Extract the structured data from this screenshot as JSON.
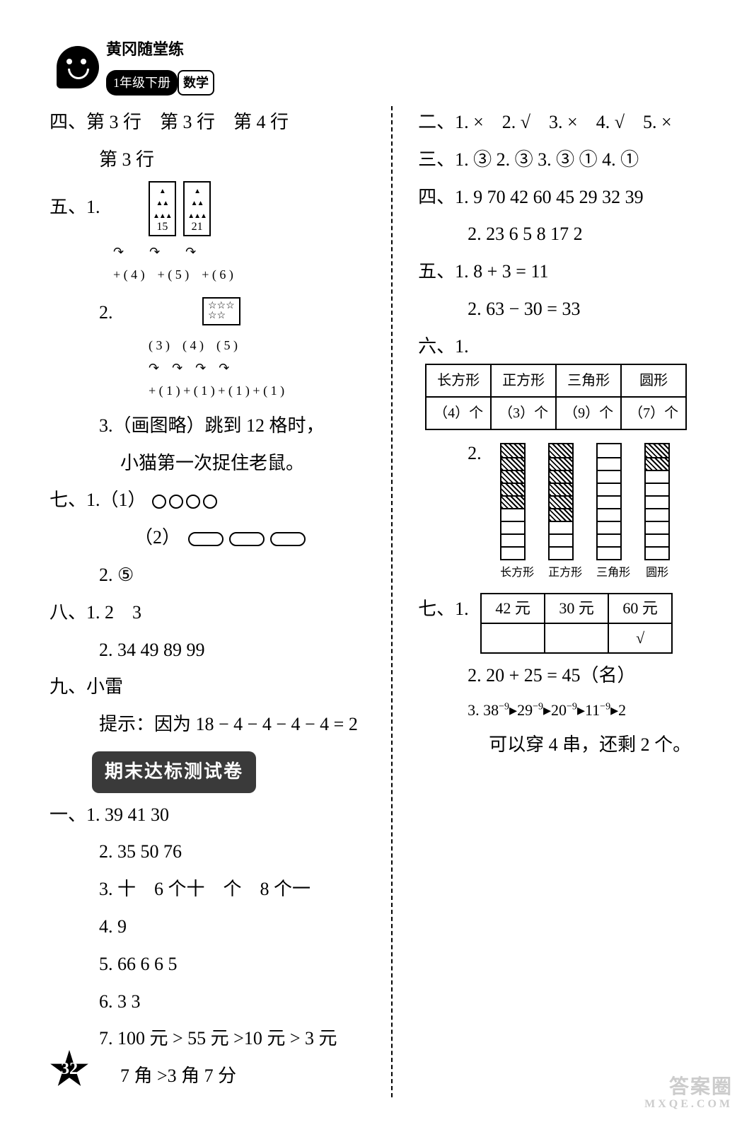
{
  "header": {
    "brand": "黄冈随堂练",
    "grade": "1年级下册",
    "subject": "数学"
  },
  "left": {
    "q4": "四、第 3 行　第 3 行　第 4 行",
    "q4b": "第 3 行",
    "q5": "五、1.",
    "q5_tri1": "15",
    "q5_tri2": "21",
    "q5_arrows1": "+ ( 4 )　+ ( 5 )　+ ( 6 )",
    "q5_2": "2.",
    "q5_2_nums": "( 3 )　( 4 )　( 5 )",
    "q5_arrows2": "+ ( 1 ) + ( 1 ) + ( 1 ) + ( 1 )",
    "q5_3a": "3.（画图略）跳到 12 格时，",
    "q5_3b": "小猫第一次捉住老鼠。",
    "q7_1_1": "七、1.（1）",
    "q7_1_2": "（2）",
    "q7_2": "2. ⑤",
    "q8_1": "八、1. 2　3",
    "q8_2": "2. 34  49  89  99",
    "q9": "九、小雷",
    "q9_hint": "提示：因为 18 − 4 − 4 − 4 − 4 = 2",
    "banner": "期末达标测试卷",
    "a1_1": "一、1. 39  41  30",
    "a1_2": "2. 35  50  76",
    "a1_3": "3. 十　6 个十　个　8 个一",
    "a1_4": "4. 9",
    "a1_5": "5. 66  6  6  5",
    "a1_6": "6. 3  3",
    "a1_7a": "7. 100 元 > 55 元 >10 元 > 3 元",
    "a1_7b": "7 角 >3 角 7 分"
  },
  "right": {
    "q2": "二、1. ×　2. √　3. ×　4. √　5. ×",
    "q3": "三、1. ③ 2. ③ 3. ③ ① 4. ①",
    "q4_1": "四、1. 9  70  42  60  45  29  32  39",
    "q4_2": "2. 23  6  5  8  17  2",
    "q5_1": "五、1. 8 + 3 = 11",
    "q5_2": "2. 63 − 30 = 33",
    "q6": "六、1.",
    "shape_table": {
      "headers": [
        "长方形",
        "正方形",
        "三角形",
        "圆形"
      ],
      "row": [
        "（4）个",
        "（3）个",
        "（9）个",
        "（7）个"
      ]
    },
    "q6_2": "2.",
    "bars": {
      "labels": [
        "长方形",
        "正方形",
        "三角形",
        "圆形"
      ],
      "heights": [
        4,
        3,
        9,
        7
      ],
      "max": 9,
      "bar_color": "#ffffff",
      "border_color": "#000000"
    },
    "q7": "七、1.",
    "price_table": {
      "row1": [
        "42 元",
        "30 元",
        "60 元"
      ],
      "row2": [
        "",
        "",
        "√"
      ]
    },
    "q7_2": "2. 20 + 25 = 45（名）",
    "q7_3a": "3. 38",
    "q7_3_seq": [
      "−9",
      "29",
      "−9",
      "20",
      "−9",
      "11",
      "−9",
      "2"
    ],
    "q7_3b": "可以穿 4 串，还剩 2 个。"
  },
  "page_number": "32",
  "watermark": {
    "top": "答案圈",
    "bottom": "MXQE.COM"
  }
}
